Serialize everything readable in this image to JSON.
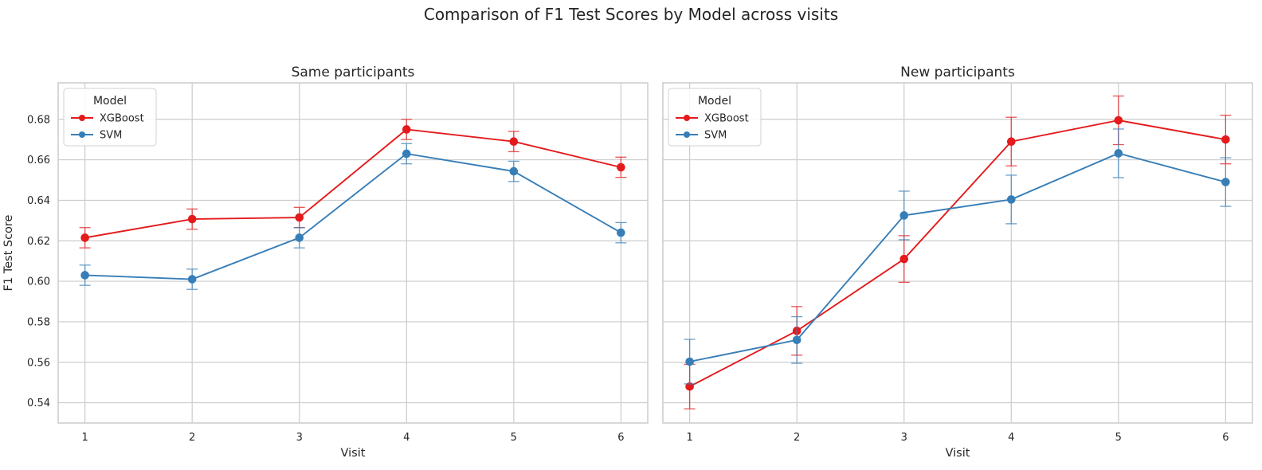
{
  "figure": {
    "title": "Comparison of F1 Test Scores by Model across visits"
  },
  "chart_data": [
    {
      "type": "line",
      "title": "Same participants",
      "xlabel": "Visit",
      "ylabel": "F1 Test Score",
      "x": [
        1,
        2,
        3,
        4,
        5,
        6
      ],
      "xlim": [
        0.75,
        6.25
      ],
      "ylim": [
        0.53,
        0.698
      ],
      "yticks": [
        0.54,
        0.56,
        0.58,
        0.6,
        0.62,
        0.64,
        0.66,
        0.68
      ],
      "grid": true,
      "legend": {
        "title": "Model",
        "position": "top-left"
      },
      "series": [
        {
          "name": "XGBoost",
          "color": "#e41a1c",
          "values": [
            0.6215,
            0.6307,
            0.6315,
            0.675,
            0.669,
            0.6563
          ],
          "error": [
            0.005,
            0.005,
            0.005,
            0.005,
            0.005,
            0.005
          ]
        },
        {
          "name": "SVM",
          "color": "#377eb8",
          "values": [
            0.603,
            0.601,
            0.6215,
            0.663,
            0.6543,
            0.624
          ],
          "error": [
            0.005,
            0.005,
            0.005,
            0.005,
            0.005,
            0.005
          ]
        }
      ]
    },
    {
      "type": "line",
      "title": "New participants",
      "xlabel": "Visit",
      "ylabel": "",
      "x": [
        1,
        2,
        3,
        4,
        5,
        6
      ],
      "xlim": [
        0.75,
        6.25
      ],
      "ylim": [
        0.53,
        0.698
      ],
      "yticks": [
        0.54,
        0.56,
        0.58,
        0.6,
        0.62,
        0.64,
        0.66,
        0.68
      ],
      "grid": true,
      "legend": {
        "title": "Model",
        "position": "top-left"
      },
      "series": [
        {
          "name": "XGBoost",
          "color": "#e41a1c",
          "values": [
            0.548,
            0.5755,
            0.611,
            0.669,
            0.6795,
            0.67
          ],
          "error": [
            0.011,
            0.012,
            0.0115,
            0.012,
            0.012,
            0.012
          ]
        },
        {
          "name": "SVM",
          "color": "#377eb8",
          "values": [
            0.5603,
            0.571,
            0.6325,
            0.6404,
            0.6632,
            0.649
          ],
          "error": [
            0.011,
            0.0115,
            0.012,
            0.012,
            0.012,
            0.012
          ]
        }
      ]
    }
  ]
}
